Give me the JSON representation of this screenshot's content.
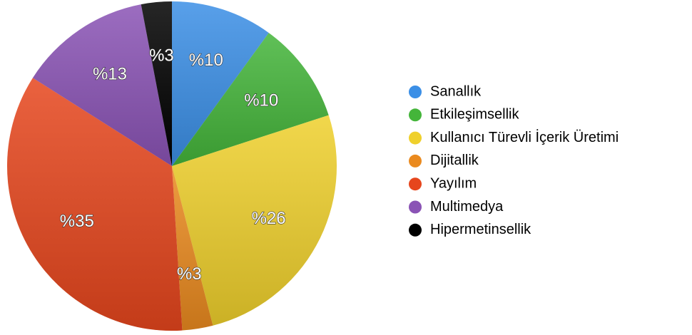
{
  "chart_data": {
    "type": "pie",
    "categories": [
      "Sanallık",
      "Etkileşimsellik",
      "Kullanıcı Türevli İçerik Üretimi",
      "Dijitallik",
      "Yayılım",
      "Multimedya",
      "Hipermetinsellik"
    ],
    "values": [
      10,
      10,
      26,
      3,
      35,
      13,
      3
    ],
    "value_labels": [
      "%10",
      "%10",
      "%26",
      "%3",
      "%35",
      "%13",
      "%3"
    ],
    "colors": [
      "#3b8fe6",
      "#44b53a",
      "#efd02c",
      "#ea8a1f",
      "#e6461d",
      "#8a53b5",
      "#000000"
    ]
  }
}
